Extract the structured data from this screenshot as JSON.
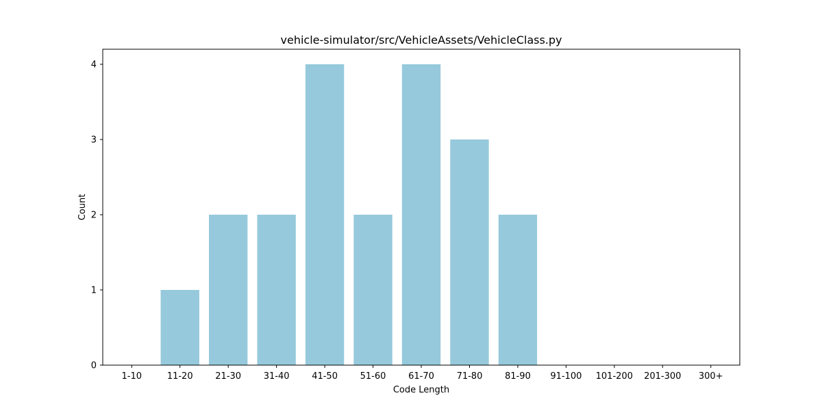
{
  "chart_data": {
    "type": "bar",
    "title": "vehicle-simulator/src/VehicleAssets/VehicleClass.py",
    "xlabel": "Code Length",
    "ylabel": "Count",
    "categories": [
      "1-10",
      "11-20",
      "21-30",
      "31-40",
      "41-50",
      "51-60",
      "61-70",
      "71-80",
      "81-90",
      "91-100",
      "101-200",
      "201-300",
      "300+"
    ],
    "values": [
      0,
      1,
      2,
      2,
      4,
      2,
      4,
      3,
      2,
      0,
      0,
      0,
      0
    ],
    "yticks": [
      0,
      1,
      2,
      3,
      4
    ],
    "ylim": [
      0,
      4.2
    ],
    "bar_color": "#96c9dc",
    "grid": false,
    "legend": "none"
  }
}
